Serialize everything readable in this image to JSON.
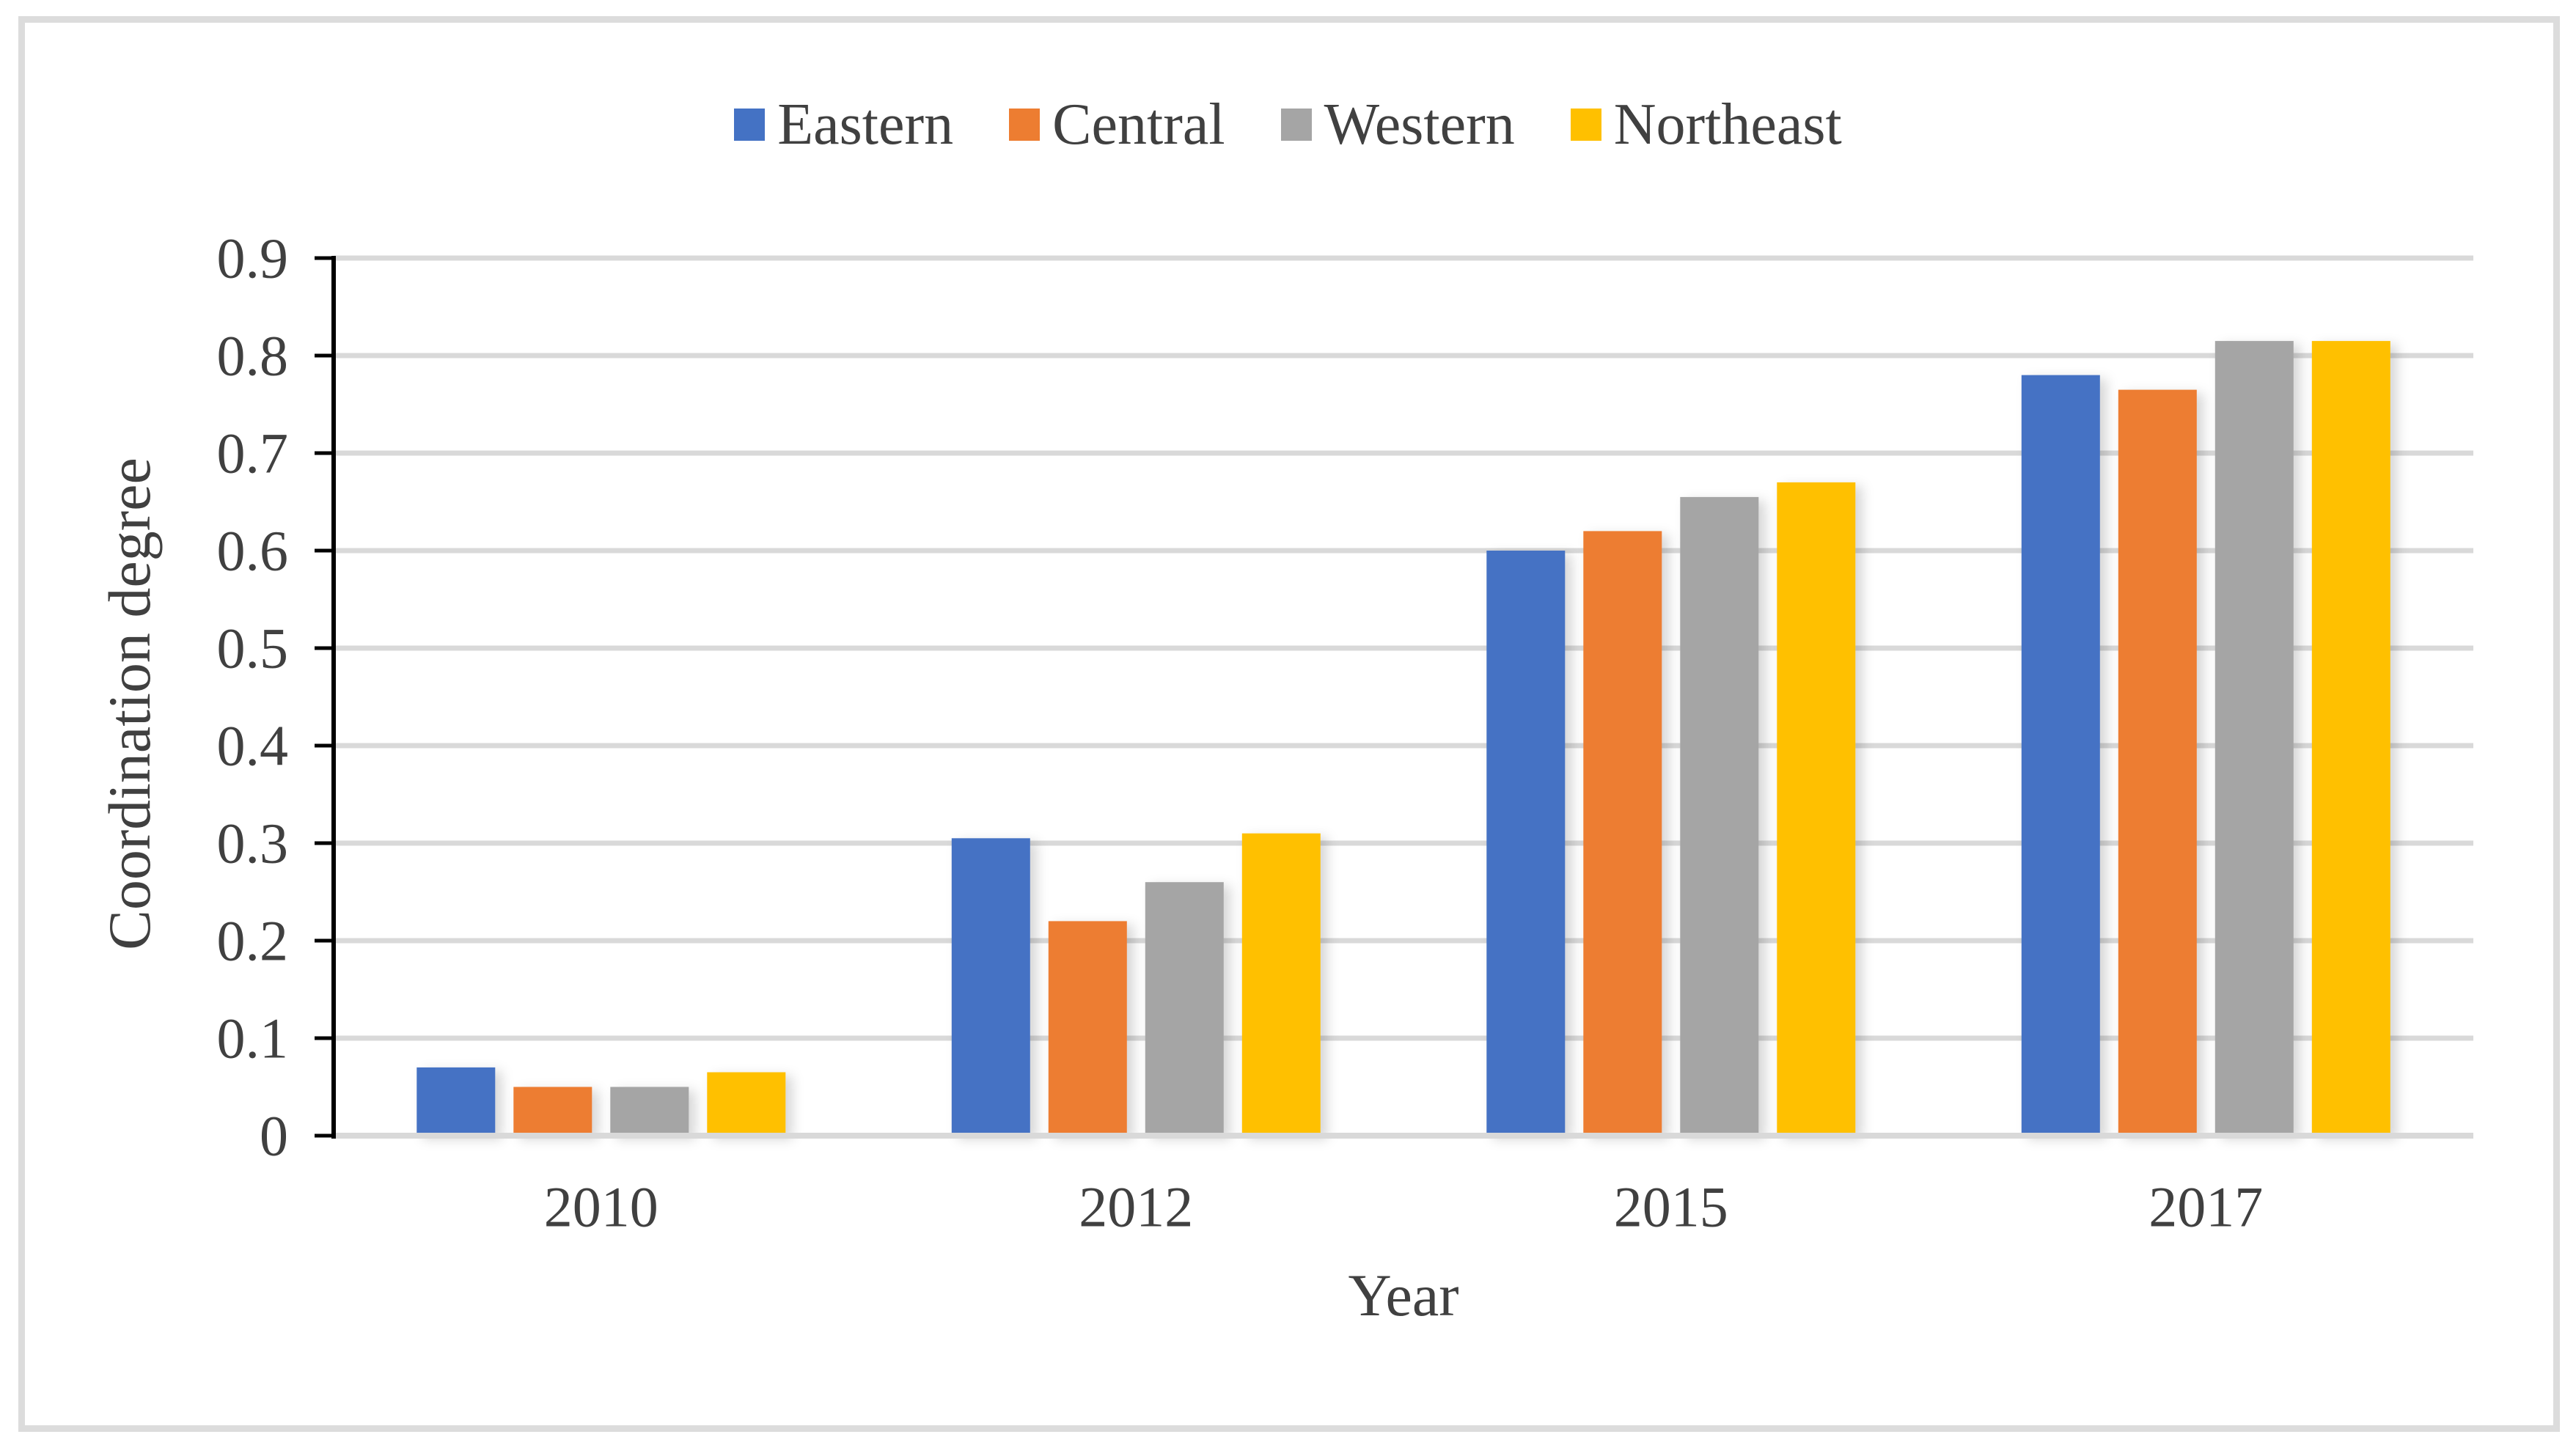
{
  "figure": {
    "background": "#ffffff",
    "border_color": "#dcdcdc"
  },
  "legend": {
    "position": "top-center",
    "marker_shape": "square"
  },
  "axis": {
    "y_title": "Coordination degree",
    "x_title": "Year",
    "axis_line_color": "#000000",
    "gridline_color": "#d9d9d9",
    "text_color": "#404040"
  },
  "chart_data": {
    "type": "bar",
    "title": "",
    "xlabel": "Year",
    "ylabel": "Coordination degree",
    "categories": [
      "2010",
      "2012",
      "2015",
      "2017"
    ],
    "series": [
      {
        "name": "Eastern",
        "color": "#4472C4",
        "values": [
          0.07,
          0.305,
          0.6,
          0.78
        ]
      },
      {
        "name": "Central",
        "color": "#ED7D31",
        "values": [
          0.05,
          0.22,
          0.62,
          0.765
        ]
      },
      {
        "name": "Western",
        "color": "#A5A5A5",
        "values": [
          0.05,
          0.26,
          0.655,
          0.815
        ]
      },
      {
        "name": "Northeast",
        "color": "#FFC000",
        "values": [
          0.065,
          0.31,
          0.67,
          0.815
        ]
      }
    ],
    "ylim": [
      0,
      0.9
    ],
    "y_tick_step": 0.1,
    "y_ticks": [
      "0",
      "0.1",
      "0.2",
      "0.3",
      "0.4",
      "0.5",
      "0.6",
      "0.7",
      "0.8",
      "0.9"
    ],
    "grid": "horizontal",
    "legend_position": "top-center"
  }
}
